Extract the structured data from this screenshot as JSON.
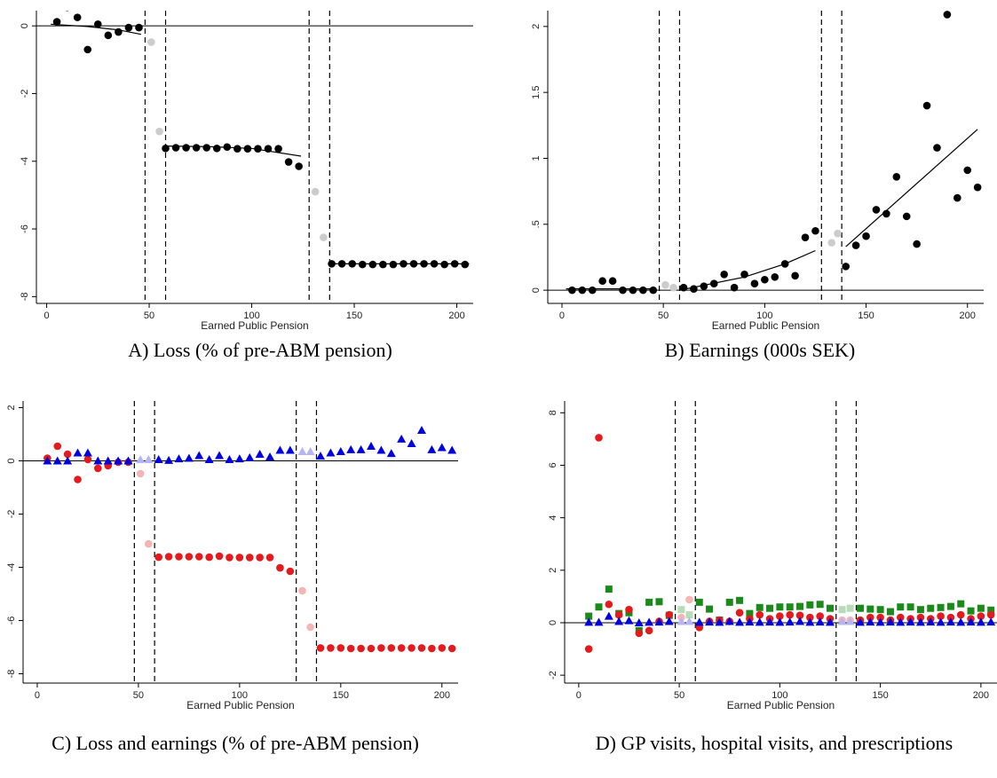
{
  "chart_data": [
    {
      "id": "A",
      "type": "scatter",
      "caption": "A)  Loss (% of pre-ABM pension)",
      "xlabel": "Earned Public Pension",
      "xlim": [
        -5,
        208
      ],
      "ylim": [
        -8.2,
        0.45
      ],
      "xticks": [
        0,
        50,
        100,
        150,
        200
      ],
      "yticks": [
        0,
        -2,
        -4,
        -6,
        -8
      ],
      "yticklabels": [
        "0",
        "-2",
        "-4",
        "-6",
        "-8"
      ],
      "vlines": [
        48,
        58,
        128,
        138
      ],
      "zero_line": true,
      "series": [
        {
          "color": "#000000",
          "marker": "circle",
          "x": [
            5,
            10,
            15,
            20,
            25,
            30,
            35,
            40,
            45,
            58,
            63,
            68,
            73,
            78,
            83,
            88,
            93,
            98,
            103,
            108,
            113,
            118,
            123,
            139,
            144,
            149,
            154,
            159,
            164,
            169,
            174,
            179,
            184,
            189,
            194,
            199,
            204
          ],
          "y": [
            0.12,
            0.55,
            0.25,
            -0.7,
            0.05,
            -0.28,
            -0.18,
            -0.05,
            -0.05,
            -3.62,
            -3.6,
            -3.6,
            -3.6,
            -3.6,
            -3.62,
            -3.58,
            -3.63,
            -3.63,
            -3.63,
            -3.63,
            -3.63,
            -4.02,
            -4.15,
            -7.03,
            -7.03,
            -7.03,
            -7.05,
            -7.05,
            -7.05,
            -7.05,
            -7.03,
            -7.03,
            -7.03,
            -7.03,
            -7.05,
            -7.03,
            -7.05
          ]
        },
        {
          "color": "#cccccc",
          "marker": "circle",
          "x": [
            51,
            55,
            131,
            135
          ],
          "y": [
            -0.48,
            -3.12,
            -4.9,
            -6.25
          ]
        }
      ],
      "fits": [
        {
          "color": "#000000",
          "points": [
            [
              2,
              0.05
            ],
            [
              20,
              -0.02
            ],
            [
              35,
              -0.12
            ],
            [
              46,
              -0.25
            ]
          ]
        },
        {
          "color": "#000000",
          "points": [
            [
              58,
              -3.55
            ],
            [
              80,
              -3.57
            ],
            [
              100,
              -3.62
            ],
            [
              124,
              -3.85
            ]
          ]
        },
        {
          "color": "#000000",
          "points": [
            [
              138,
              -7.03
            ],
            [
              206,
              -7.03
            ]
          ]
        }
      ]
    },
    {
      "id": "B",
      "type": "scatter",
      "caption": "B) Earnings (000s SEK)",
      "xlabel": "Earned Public Pension",
      "xlim": [
        -7,
        208
      ],
      "ylim": [
        -0.1,
        2.12
      ],
      "xticks": [
        0,
        50,
        100,
        150,
        200
      ],
      "yticks": [
        0,
        0.5,
        1,
        1.5,
        2
      ],
      "yticklabels": [
        "0",
        ".5",
        "1",
        "1.5",
        "2"
      ],
      "vlines": [
        48,
        58,
        128,
        138
      ],
      "zero_line": true,
      "series": [
        {
          "color": "#000000",
          "marker": "circle",
          "x": [
            5,
            10,
            15,
            20,
            25,
            30,
            35,
            40,
            45,
            60,
            65,
            70,
            75,
            80,
            85,
            90,
            95,
            100,
            105,
            110,
            115,
            120,
            125,
            140,
            145,
            150,
            155,
            160,
            165,
            170,
            175,
            180,
            185,
            190,
            195,
            200,
            205
          ],
          "y": [
            0.0,
            0.0,
            0.0,
            0.07,
            0.07,
            0.0,
            0.0,
            0.0,
            0.0,
            0.02,
            0.01,
            0.03,
            0.05,
            0.12,
            0.02,
            0.12,
            0.05,
            0.08,
            0.1,
            0.2,
            0.11,
            0.4,
            0.45,
            0.18,
            0.34,
            0.41,
            0.61,
            0.58,
            0.86,
            0.56,
            0.35,
            1.4,
            1.08,
            2.09,
            0.7,
            0.91,
            0.78
          ]
        },
        {
          "color": "#cccccc",
          "marker": "circle",
          "x": [
            51,
            55,
            133,
            136
          ],
          "y": [
            0.04,
            0.02,
            0.36,
            0.43
          ]
        }
      ],
      "fits": [
        {
          "color": "#000000",
          "points": [
            [
              2,
              0.01
            ],
            [
              46,
              0.01
            ]
          ]
        },
        {
          "color": "#000000",
          "points": [
            [
              58,
              0.0
            ],
            [
              90,
              0.1
            ],
            [
              110,
              0.2
            ],
            [
              125,
              0.3
            ]
          ]
        },
        {
          "color": "#000000",
          "points": [
            [
              140,
              0.33
            ],
            [
              205,
              1.22
            ]
          ]
        }
      ]
    },
    {
      "id": "C",
      "type": "scatter",
      "caption": "C) Loss and earnings (% of pre-ABM pension)",
      "xlabel": "Earned Public Pension",
      "xlim": [
        -7,
        208
      ],
      "ylim": [
        -8.35,
        2.25
      ],
      "xticks": [
        0,
        50,
        100,
        150,
        200
      ],
      "yticks": [
        2,
        0,
        -2,
        -4,
        -6,
        -8
      ],
      "yticklabels": [
        "2",
        "0",
        "-2",
        "-4",
        "-6",
        "-8"
      ],
      "vlines": [
        48,
        58,
        128,
        138
      ],
      "zero_line": true,
      "series": [
        {
          "color": "#e41a1c",
          "marker": "circle",
          "x": [
            5,
            10,
            15,
            20,
            25,
            30,
            35,
            40,
            45,
            60,
            65,
            70,
            75,
            80,
            85,
            90,
            95,
            100,
            105,
            110,
            115,
            120,
            125,
            140,
            145,
            150,
            155,
            160,
            165,
            170,
            175,
            180,
            185,
            190,
            195,
            200,
            205
          ],
          "y": [
            0.1,
            0.55,
            0.25,
            -0.7,
            0.05,
            -0.28,
            -0.18,
            -0.05,
            -0.05,
            -3.62,
            -3.6,
            -3.6,
            -3.6,
            -3.6,
            -3.62,
            -3.58,
            -3.63,
            -3.63,
            -3.63,
            -3.63,
            -3.63,
            -4.02,
            -4.15,
            -7.03,
            -7.03,
            -7.03,
            -7.05,
            -7.05,
            -7.05,
            -7.03,
            -7.03,
            -7.03,
            -7.03,
            -7.03,
            -7.05,
            -7.03,
            -7.05
          ]
        },
        {
          "color": "#f5b5b5",
          "marker": "circle",
          "x": [
            51,
            55,
            131,
            135
          ],
          "y": [
            -0.48,
            -3.12,
            -4.88,
            -6.25
          ]
        },
        {
          "color": "#0000e0",
          "marker": "triangle",
          "x": [
            5,
            10,
            15,
            20,
            25,
            30,
            35,
            40,
            45,
            60,
            65,
            70,
            75,
            80,
            85,
            90,
            95,
            100,
            105,
            110,
            115,
            120,
            125,
            140,
            145,
            150,
            155,
            160,
            165,
            170,
            175,
            180,
            185,
            190,
            195,
            200,
            205
          ],
          "y": [
            0.0,
            0.0,
            0.0,
            0.3,
            0.3,
            0.0,
            0.0,
            0.0,
            0.0,
            0.05,
            0.02,
            0.08,
            0.1,
            0.2,
            0.05,
            0.2,
            0.05,
            0.08,
            0.12,
            0.25,
            0.15,
            0.4,
            0.4,
            0.18,
            0.3,
            0.35,
            0.42,
            0.42,
            0.55,
            0.4,
            0.28,
            0.82,
            0.65,
            1.15,
            0.42,
            0.5,
            0.4
          ]
        },
        {
          "color": "#b5b5f5",
          "marker": "triangle",
          "x": [
            51,
            55,
            131,
            135
          ],
          "y": [
            0.05,
            0.05,
            0.35,
            0.35
          ]
        }
      ]
    },
    {
      "id": "D",
      "type": "scatter",
      "caption": "D) GP visits, hospital visits, and prescriptions",
      "xlabel": "Earned Public Pension",
      "xlim": [
        -7,
        208
      ],
      "ylim": [
        -2.3,
        8.45
      ],
      "xticks": [
        0,
        50,
        100,
        150,
        200
      ],
      "yticks": [
        8,
        6,
        4,
        2,
        0,
        -2
      ],
      "yticklabels": [
        "8",
        "6",
        "4",
        "2",
        "0",
        "-2"
      ],
      "vlines": [
        48,
        58,
        128,
        138
      ],
      "zero_line": true,
      "series": [
        {
          "color": "#1a8a1a",
          "marker": "square",
          "x": [
            5,
            10,
            15,
            20,
            25,
            30,
            35,
            40,
            45,
            60,
            65,
            70,
            75,
            80,
            85,
            90,
            95,
            100,
            105,
            110,
            115,
            120,
            125,
            140,
            145,
            150,
            155,
            160,
            165,
            170,
            175,
            180,
            185,
            190,
            195,
            200,
            205
          ],
          "y": [
            0.25,
            0.6,
            1.28,
            0.35,
            0.38,
            -0.3,
            0.78,
            0.8,
            0.28,
            0.78,
            0.52,
            0.1,
            0.78,
            0.85,
            0.35,
            0.58,
            0.55,
            0.6,
            0.6,
            0.62,
            0.68,
            0.7,
            0.55,
            0.55,
            0.52,
            0.5,
            0.42,
            0.6,
            0.6,
            0.5,
            0.55,
            0.58,
            0.62,
            0.72,
            0.45,
            0.55,
            0.48
          ]
        },
        {
          "color": "#b8dcb8",
          "marker": "square",
          "x": [
            51,
            55,
            131,
            135
          ],
          "y": [
            0.5,
            0.3,
            0.5,
            0.55
          ]
        },
        {
          "color": "#e41a1c",
          "marker": "circle",
          "x": [
            5,
            10,
            15,
            20,
            25,
            30,
            35,
            40,
            45,
            60,
            65,
            70,
            75,
            80,
            85,
            90,
            95,
            100,
            105,
            110,
            115,
            120,
            125,
            140,
            145,
            150,
            155,
            160,
            165,
            170,
            175,
            180,
            185,
            190,
            195,
            200,
            205
          ],
          "y": [
            -1.0,
            7.05,
            0.7,
            0.3,
            0.5,
            -0.4,
            -0.3,
            0.05,
            0.3,
            -0.18,
            0.05,
            0.1,
            0.05,
            0.38,
            0.15,
            0.3,
            0.15,
            0.25,
            0.3,
            0.28,
            0.2,
            0.25,
            0.15,
            0.1,
            0.2,
            0.2,
            0.1,
            0.2,
            0.15,
            0.2,
            0.15,
            0.25,
            0.2,
            0.3,
            0.15,
            0.25,
            0.3
          ]
        },
        {
          "color": "#f5b5b5",
          "marker": "circle",
          "x": [
            51,
            55,
            131,
            135
          ],
          "y": [
            0.2,
            0.88,
            0.1,
            0.1
          ]
        },
        {
          "color": "#0000e0",
          "marker": "triangle",
          "x": [
            5,
            10,
            15,
            20,
            25,
            30,
            35,
            40,
            45,
            60,
            65,
            70,
            75,
            80,
            85,
            90,
            95,
            100,
            105,
            110,
            115,
            120,
            125,
            140,
            145,
            150,
            155,
            160,
            165,
            170,
            175,
            180,
            185,
            190,
            195,
            200,
            205
          ],
          "y": [
            0.02,
            0.02,
            0.25,
            0.05,
            0.08,
            0.0,
            0.02,
            0.03,
            0.05,
            0.02,
            0.03,
            0.02,
            0.05,
            0.02,
            0.03,
            0.02,
            0.03,
            0.02,
            0.03,
            0.05,
            0.02,
            0.03,
            0.02,
            0.02,
            0.03,
            0.02,
            0.03,
            0.02,
            0.03,
            0.02,
            0.03,
            0.02,
            0.03,
            0.02,
            0.03,
            0.02,
            0.03
          ]
        },
        {
          "color": "#b5b5f5",
          "marker": "triangle",
          "x": [
            51,
            55,
            131,
            135
          ],
          "y": [
            0.05,
            0.05,
            0.05,
            0.05
          ]
        }
      ]
    }
  ]
}
